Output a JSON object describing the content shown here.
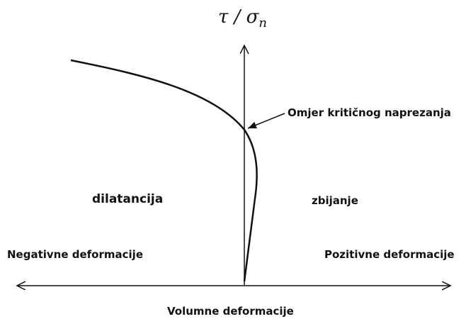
{
  "axis_label": {
    "main": "τ / σ",
    "subscript": "n"
  },
  "annotation": "Omjer kritičnog naprezanja",
  "regions": {
    "left": "dilatancija",
    "right": "zbijanje"
  },
  "x_axis": {
    "negative": "Negativne deformacije",
    "positive": "Pozitivne deformacije",
    "title": "Volumne deformacije"
  }
}
